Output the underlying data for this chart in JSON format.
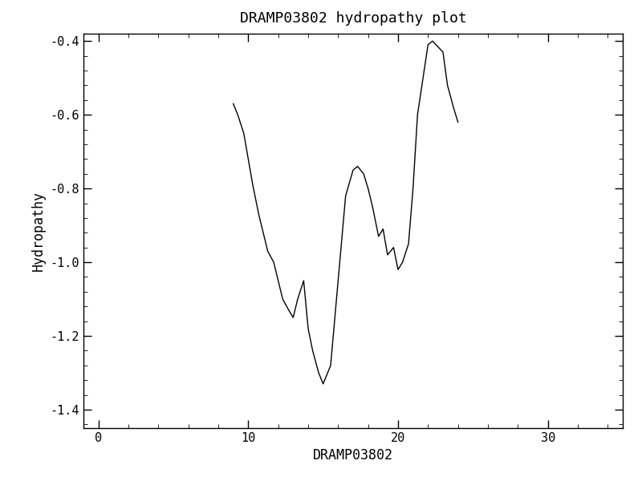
{
  "title": "DRAMP03802 hydropathy plot",
  "xlabel": "DRAMP03802",
  "ylabel": "Hydropathy",
  "xlim": [
    -1,
    35
  ],
  "ylim": [
    -1.45,
    -0.38
  ],
  "xticks": [
    0,
    10,
    20,
    30
  ],
  "yticks": [
    -1.4,
    -1.2,
    -1.0,
    -0.8,
    -0.6,
    -0.4
  ],
  "line_color": "black",
  "line_width": 1.0,
  "background_color": "white",
  "x": [
    9.0,
    9.3,
    9.7,
    10.0,
    10.3,
    10.7,
    11.0,
    11.3,
    11.7,
    12.0,
    12.3,
    12.7,
    13.0,
    13.3,
    13.7,
    14.0,
    14.3,
    14.7,
    15.0,
    15.5,
    16.0,
    16.5,
    17.0,
    17.3,
    17.7,
    18.0,
    18.3,
    18.7,
    19.0,
    19.3,
    19.7,
    20.0,
    20.3,
    20.7,
    21.0,
    21.3,
    22.0,
    22.3,
    23.0,
    23.3,
    23.7,
    24.0
  ],
  "y": [
    -0.57,
    -0.6,
    -0.65,
    -0.72,
    -0.79,
    -0.87,
    -0.92,
    -0.97,
    -1.0,
    -1.05,
    -1.1,
    -1.13,
    -1.15,
    -1.1,
    -1.05,
    -1.18,
    -1.24,
    -1.3,
    -1.33,
    -1.28,
    -1.05,
    -0.82,
    -0.75,
    -0.74,
    -0.76,
    -0.8,
    -0.85,
    -0.93,
    -0.91,
    -0.98,
    -0.96,
    -1.02,
    -1.0,
    -0.95,
    -0.8,
    -0.6,
    -0.41,
    -0.4,
    -0.43,
    -0.52,
    -0.58,
    -0.62
  ]
}
